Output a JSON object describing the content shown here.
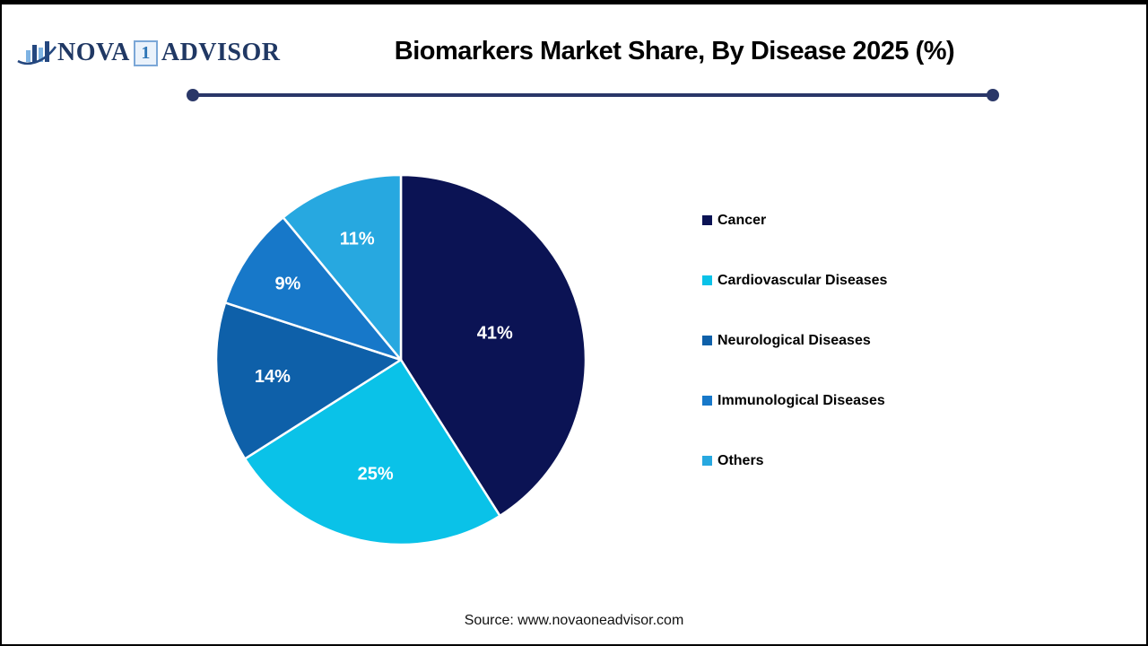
{
  "logo": {
    "part1": "NOVA",
    "part2": "1",
    "part3": "ADVISOR"
  },
  "header": {
    "title": "Biomarkers Market Share, By Disease 2025 (%)"
  },
  "chart_data": {
    "type": "pie",
    "title": "Biomarkers Market Share, By Disease 2025 (%)",
    "labels": [
      "Cancer",
      "Cardiovascular Diseases",
      "Neurological Diseases",
      "Immunological Diseases",
      "Others"
    ],
    "values": [
      41,
      25,
      14,
      9,
      11
    ],
    "unit": "%",
    "data_labels": [
      "41%",
      "25%",
      "14%",
      "9%",
      "11%"
    ],
    "colors": [
      "#0b1354",
      "#0ac2e8",
      "#0e60a9",
      "#1778c9",
      "#27a8e0"
    ],
    "slice_border_color": "#ffffff",
    "start_angle_deg": 0,
    "direction": "clockwise",
    "legend_position": "right",
    "data_label_color": "#ffffff"
  },
  "footer": {
    "source": "Source: www.novaoneadvisor.com"
  }
}
